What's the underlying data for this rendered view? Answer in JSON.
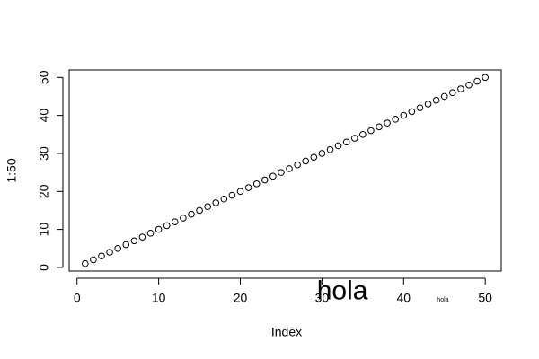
{
  "chart_data": {
    "type": "scatter",
    "x_label": "Index",
    "y_label": "1:50",
    "x": [
      1,
      2,
      3,
      4,
      5,
      6,
      7,
      8,
      9,
      10,
      11,
      12,
      13,
      14,
      15,
      16,
      17,
      18,
      19,
      20,
      21,
      22,
      23,
      24,
      25,
      26,
      27,
      28,
      29,
      30,
      31,
      32,
      33,
      34,
      35,
      36,
      37,
      38,
      39,
      40,
      41,
      42,
      43,
      44,
      45,
      46,
      47,
      48,
      49,
      50
    ],
    "values": [
      1,
      2,
      3,
      4,
      5,
      6,
      7,
      8,
      9,
      10,
      11,
      12,
      13,
      14,
      15,
      16,
      17,
      18,
      19,
      20,
      21,
      22,
      23,
      24,
      25,
      26,
      27,
      28,
      29,
      30,
      31,
      32,
      33,
      34,
      35,
      36,
      37,
      38,
      39,
      40,
      41,
      42,
      43,
      44,
      45,
      46,
      47,
      48,
      49,
      50
    ],
    "color": "#000000",
    "xlim": [
      -0.96,
      51.96
    ],
    "ylim": [
      -0.96,
      51.96
    ],
    "xticks": [
      0,
      10,
      20,
      30,
      40,
      50
    ],
    "yticks": [
      0,
      10,
      20,
      30,
      40,
      50
    ],
    "annotations": [
      {
        "text": "hola",
        "x": 32.5,
        "y": -6.5
      },
      {
        "text": "hola",
        "x": 44.8,
        "y": -8.5
      }
    ]
  }
}
